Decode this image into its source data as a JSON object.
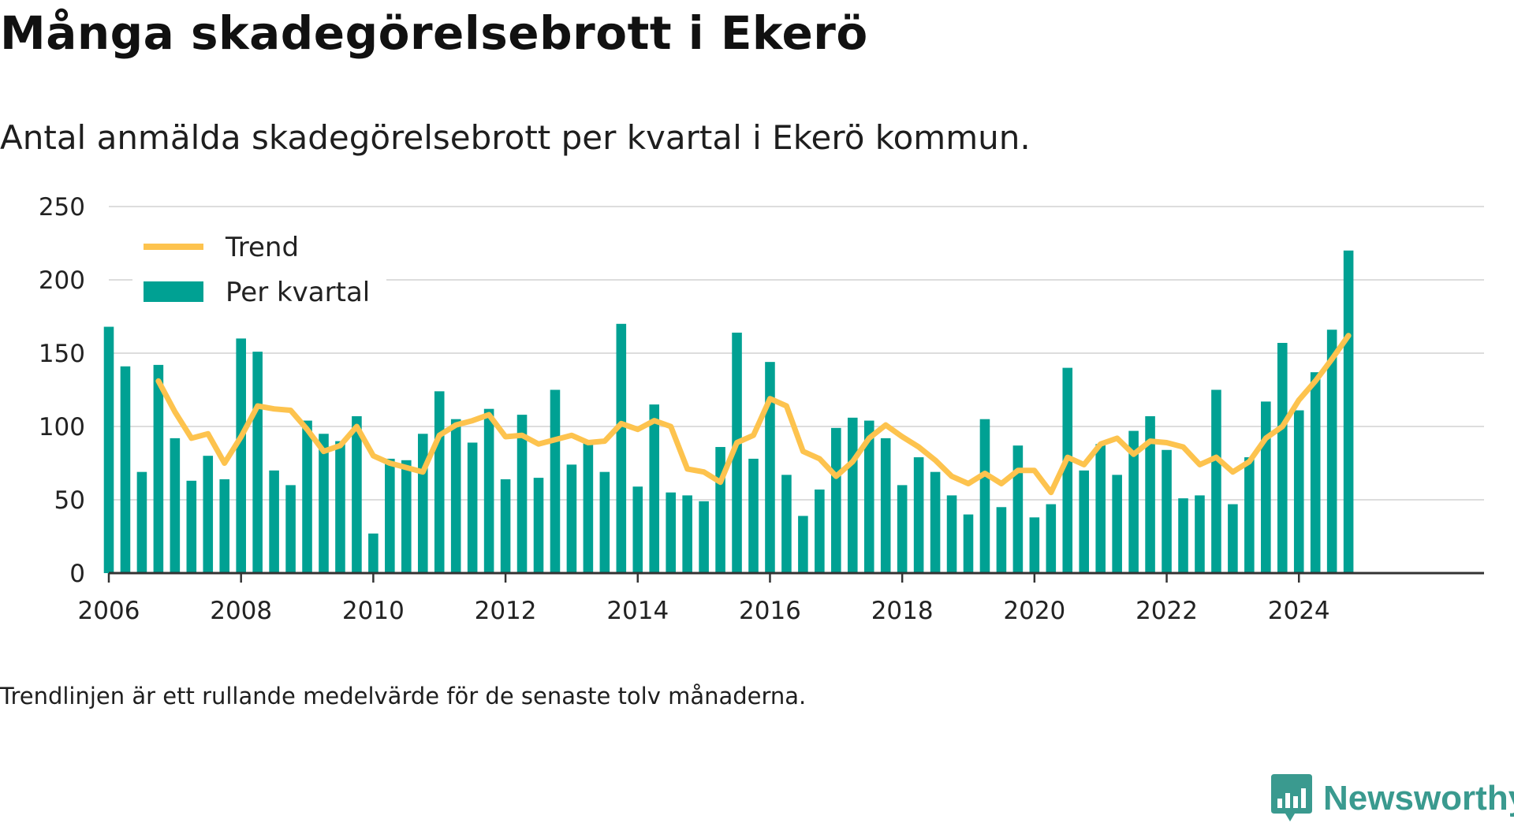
{
  "title": "Många skadegörelsebrott i Ekerö",
  "subtitle": "Antal anmälda skadegörelsebrott per kvartal i Ekerö kommun.",
  "footnote": "Trendlinjen är ett rullande medelvärde för de senaste tolv månaderna.",
  "brand": {
    "name": "Newsworthy",
    "icon": "newsworthy-chart-icon",
    "color": "#3a9a8f"
  },
  "colors": {
    "bars": "#00a193",
    "trend": "#fdc34e",
    "grid": "#dddddd",
    "axis": "#333333",
    "text": "#222222"
  },
  "chart_data": {
    "type": "bar",
    "title": "Många skadegörelsebrott i Ekerö",
    "xlabel": "",
    "ylabel": "",
    "ylim": [
      0,
      250
    ],
    "yticks": [
      "0",
      "50",
      "100",
      "150",
      "200",
      "250"
    ],
    "xticks": [
      "2006",
      "2008",
      "2010",
      "2012",
      "2014",
      "2016",
      "2018",
      "2020",
      "2022",
      "2024"
    ],
    "grid": true,
    "legend_position": "top-left",
    "categories": [
      "2006 Q1",
      "2006 Q2",
      "2006 Q3",
      "2006 Q4",
      "2007 Q1",
      "2007 Q2",
      "2007 Q3",
      "2007 Q4",
      "2008 Q1",
      "2008 Q2",
      "2008 Q3",
      "2008 Q4",
      "2009 Q1",
      "2009 Q2",
      "2009 Q3",
      "2009 Q4",
      "2010 Q1",
      "2010 Q2",
      "2010 Q3",
      "2010 Q4",
      "2011 Q1",
      "2011 Q2",
      "2011 Q3",
      "2011 Q4",
      "2012 Q1",
      "2012 Q2",
      "2012 Q3",
      "2012 Q4",
      "2013 Q1",
      "2013 Q2",
      "2013 Q3",
      "2013 Q4",
      "2014 Q1",
      "2014 Q2",
      "2014 Q3",
      "2014 Q4",
      "2015 Q1",
      "2015 Q2",
      "2015 Q3",
      "2015 Q4",
      "2016 Q1",
      "2016 Q2",
      "2016 Q3",
      "2016 Q4",
      "2017 Q1",
      "2017 Q2",
      "2017 Q3",
      "2017 Q4",
      "2018 Q1",
      "2018 Q2",
      "2018 Q3",
      "2018 Q4",
      "2019 Q1",
      "2019 Q2",
      "2019 Q3",
      "2019 Q4",
      "2020 Q1",
      "2020 Q2",
      "2020 Q3",
      "2020 Q4",
      "2021 Q1",
      "2021 Q2",
      "2021 Q3",
      "2021 Q4",
      "2022 Q1",
      "2022 Q2",
      "2022 Q3",
      "2022 Q4",
      "2023 Q1",
      "2023 Q2",
      "2023 Q3",
      "2023 Q4",
      "2024 Q1",
      "2024 Q2",
      "2024 Q3",
      "2024 Q4"
    ],
    "series": [
      {
        "name": "Per kvartal",
        "type": "bar",
        "values": [
          168,
          141,
          69,
          142,
          92,
          63,
          80,
          64,
          160,
          151,
          70,
          60,
          104,
          95,
          90,
          107,
          27,
          78,
          77,
          95,
          124,
          105,
          89,
          112,
          64,
          108,
          65,
          125,
          74,
          90,
          69,
          170,
          59,
          115,
          55,
          53,
          49,
          86,
          164,
          78,
          144,
          67,
          39,
          57,
          99,
          106,
          104,
          92,
          60,
          79,
          69,
          53,
          40,
          105,
          45,
          87,
          38,
          47,
          140,
          70,
          88,
          67,
          97,
          107,
          84,
          51,
          53,
          125,
          47,
          79,
          117,
          157,
          111,
          137,
          166,
          220
        ]
      },
      {
        "name": "Trend",
        "type": "line",
        "values": [
          null,
          null,
          null,
          131,
          110,
          92,
          95,
          75,
          93,
          114,
          112,
          111,
          98,
          83,
          87,
          100,
          80,
          75,
          72,
          69,
          94,
          101,
          104,
          108,
          93,
          94,
          88,
          91,
          94,
          89,
          90,
          102,
          98,
          104,
          100,
          71,
          69,
          62,
          89,
          94,
          119,
          114,
          83,
          78,
          66,
          76,
          92,
          101,
          93,
          86,
          77,
          66,
          61,
          68,
          61,
          70,
          70,
          55,
          79,
          74,
          88,
          92,
          81,
          90,
          89,
          86,
          74,
          79,
          69,
          76,
          92,
          100,
          118,
          131,
          146,
          162
        ]
      }
    ]
  }
}
